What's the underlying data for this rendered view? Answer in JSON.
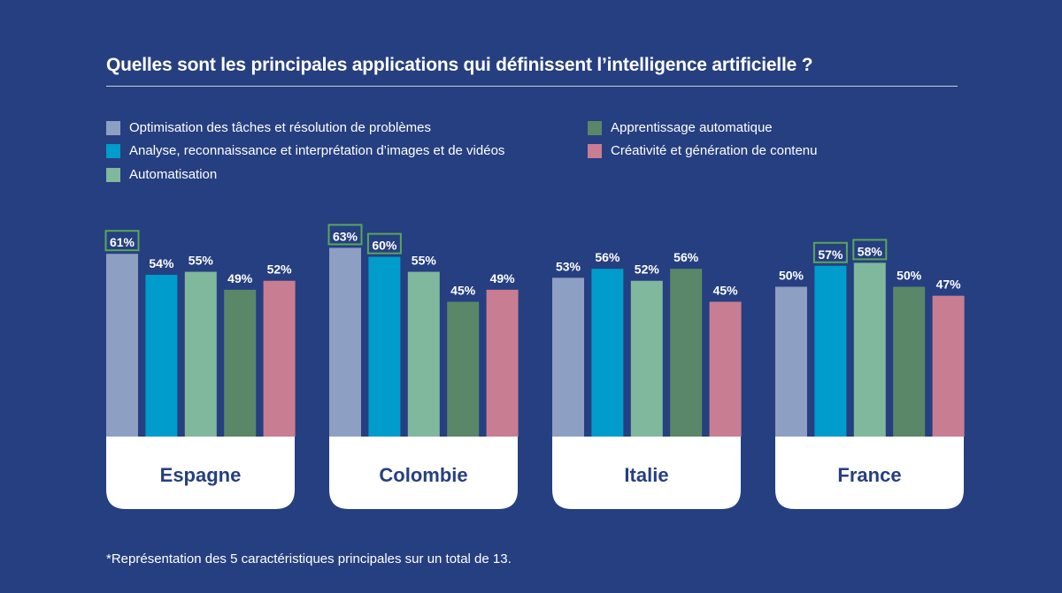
{
  "chart_data": {
    "type": "bar",
    "title": "Quelles sont les principales applications qui définissent l’intelligence artificielle ?",
    "categories": [
      "Espagne",
      "Colombie",
      "Italie",
      "France"
    ],
    "series": [
      {
        "name": "Optimisation des tâches et résolution de problèmes",
        "color": "#8e9fc4",
        "values": [
          61,
          63,
          53,
          50
        ]
      },
      {
        "name": "Analyse, reconnaissance et interprétation d’images et de vidéos",
        "color": "#009ccb",
        "values": [
          54,
          60,
          56,
          57
        ]
      },
      {
        "name": "Automatisation",
        "color": "#7fb89c",
        "values": [
          55,
          55,
          52,
          58
        ]
      },
      {
        "name": "Apprentissage automatique",
        "color": "#5a8768",
        "values": [
          49,
          45,
          56,
          50
        ]
      },
      {
        "name": "Créativité et génération de contenu",
        "color": "#c97d93",
        "values": [
          52,
          49,
          45,
          47
        ]
      }
    ],
    "value_suffix": "%",
    "highlighted": [
      [
        0,
        0
      ],
      [
        0,
        1
      ],
      [
        1,
        1
      ],
      [
        1,
        3
      ],
      [
        2,
        3
      ]
    ],
    "highlight_color": "#5aa65a",
    "ylim": [
      0,
      100
    ],
    "footnote": "*Représentation des 5 caractéristiques principales sur un total de 13."
  }
}
